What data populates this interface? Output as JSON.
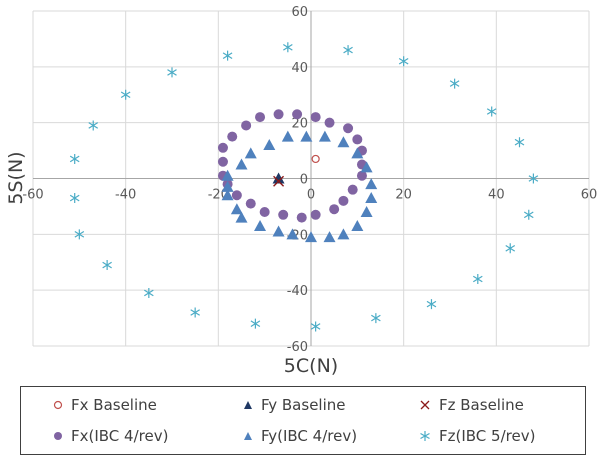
{
  "chart_data": {
    "type": "scatter",
    "title": "",
    "xlabel": "5C(N)",
    "ylabel": "5S(N)",
    "xlim": [
      -60,
      60
    ],
    "ylim": [
      -60,
      60
    ],
    "x_ticks": [
      -60,
      -40,
      -20,
      0,
      20,
      40,
      60
    ],
    "y_ticks": [
      -60,
      -40,
      -20,
      0,
      20,
      40,
      60
    ],
    "grid": true,
    "legend_position": "bottom",
    "series": [
      {
        "name": "Fx Baseline",
        "marker": "open-circle",
        "color": "#c0504d",
        "points": [
          [
            1,
            7
          ]
        ]
      },
      {
        "name": "Fy Baseline",
        "marker": "triangle",
        "color": "#1f3864",
        "points": [
          [
            -7,
            0
          ]
        ]
      },
      {
        "name": "Fz Baseline",
        "marker": "x",
        "color": "#8b1a1a",
        "points": [
          [
            -7,
            -1
          ]
        ]
      },
      {
        "name": "Fx(IBC 4/rev)",
        "marker": "circle",
        "color": "#8064a2",
        "points": [
          [
            -19,
            6
          ],
          [
            -19,
            11
          ],
          [
            -17,
            15
          ],
          [
            -14,
            19
          ],
          [
            -11,
            22
          ],
          [
            -7,
            23
          ],
          [
            -3,
            23
          ],
          [
            1,
            22
          ],
          [
            4,
            20
          ],
          [
            8,
            18
          ],
          [
            10,
            14
          ],
          [
            11,
            10
          ],
          [
            11,
            5
          ],
          [
            11,
            1
          ],
          [
            9,
            -4
          ],
          [
            7,
            -8
          ],
          [
            5,
            -11
          ],
          [
            1,
            -13
          ],
          [
            -2,
            -14
          ],
          [
            -6,
            -13
          ],
          [
            -10,
            -12
          ],
          [
            -13,
            -9
          ],
          [
            -16,
            -6
          ],
          [
            -18,
            -2
          ],
          [
            -19,
            1
          ]
        ]
      },
      {
        "name": "Fy(IBC 4/rev)",
        "marker": "triangle",
        "color": "#4f81bd",
        "points": [
          [
            -18,
            1
          ],
          [
            -15,
            5
          ],
          [
            -13,
            9
          ],
          [
            -9,
            12
          ],
          [
            -5,
            15
          ],
          [
            -1,
            15
          ],
          [
            3,
            15
          ],
          [
            7,
            13
          ],
          [
            10,
            9
          ],
          [
            12,
            4
          ],
          [
            13,
            -2
          ],
          [
            13,
            -7
          ],
          [
            12,
            -12
          ],
          [
            10,
            -17
          ],
          [
            7,
            -20
          ],
          [
            4,
            -21
          ],
          [
            0,
            -21
          ],
          [
            -4,
            -20
          ],
          [
            -7,
            -19
          ],
          [
            -11,
            -17
          ],
          [
            -15,
            -14
          ],
          [
            -16,
            -11
          ],
          [
            -18,
            -6
          ],
          [
            -18,
            -3
          ]
        ]
      },
      {
        "name": "Fz(IBC 5/rev)",
        "marker": "asterisk",
        "color": "#4bacc6",
        "points": [
          [
            -51,
            7
          ],
          [
            -47,
            19
          ],
          [
            -40,
            30
          ],
          [
            -30,
            38
          ],
          [
            -18,
            44
          ],
          [
            -5,
            47
          ],
          [
            8,
            46
          ],
          [
            20,
            42
          ],
          [
            31,
            34
          ],
          [
            39,
            24
          ],
          [
            45,
            13
          ],
          [
            48,
            0
          ],
          [
            47,
            -13
          ],
          [
            43,
            -25
          ],
          [
            36,
            -36
          ],
          [
            26,
            -45
          ],
          [
            14,
            -50
          ],
          [
            1,
            -53
          ],
          [
            -12,
            -52
          ],
          [
            -25,
            -48
          ],
          [
            -35,
            -41
          ],
          [
            -44,
            -31
          ],
          [
            -50,
            -20
          ],
          [
            -51,
            -7
          ]
        ]
      }
    ]
  },
  "axes": {
    "x_title": "5C(N)",
    "y_title": "5S(N)"
  },
  "legend": {
    "items": [
      {
        "label": "Fx Baseline"
      },
      {
        "label": "Fy Baseline"
      },
      {
        "label": "Fz Baseline"
      },
      {
        "label": "Fx(IBC 4/rev)"
      },
      {
        "label": "Fy(IBC 4/rev)"
      },
      {
        "label": "Fz(IBC 5/rev)"
      }
    ]
  }
}
